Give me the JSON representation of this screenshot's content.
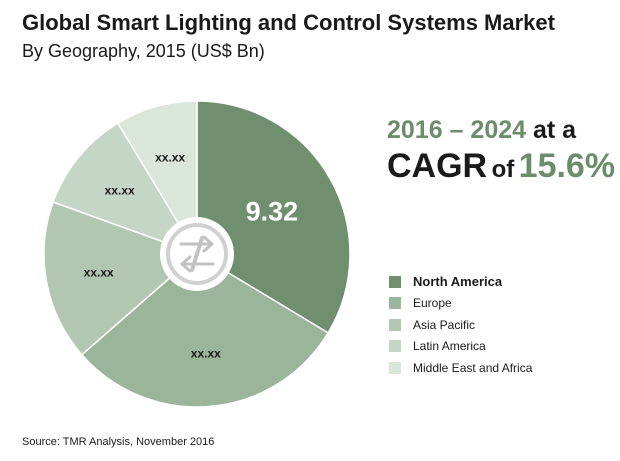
{
  "chart_data": {
    "type": "pie",
    "title": "Global Smart Lighting and Control Systems Market",
    "subtitle": "By Geography, 2015 (US$ Bn)",
    "categories": [
      "North America",
      "Europe",
      "Asia Pacific",
      "Latin America",
      "Middle East and Africa"
    ],
    "values": [
      9.32,
      8.3,
      4.7,
      3.0,
      2.4
    ],
    "labels": [
      "9.32",
      "xx.xx",
      "xx.xx",
      "xx.xx",
      "xx.xx"
    ],
    "colors": [
      "#6f8f6f",
      "#9bb59b",
      "#b2c7b2",
      "#c6d6c6",
      "#dbe6db"
    ],
    "legend_position": "right",
    "annotation": {
      "years": "2016 – 2024",
      "at_a": "at a",
      "cagr": "CAGR",
      "of": "of",
      "rate": "15.6%"
    },
    "source": "Source: TMR Analysis, November 2016"
  }
}
